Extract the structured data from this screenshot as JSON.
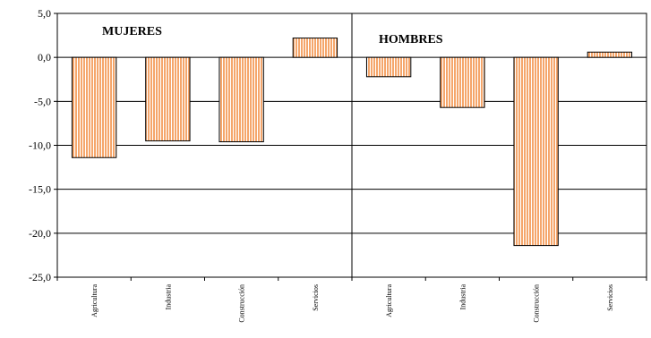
{
  "chart_data": {
    "type": "bar",
    "title": "",
    "xlabel": "",
    "ylabel": "",
    "ylim": [
      -25,
      5
    ],
    "yticks": [
      "5,0",
      "0,0",
      "-5,0",
      "-10,0",
      "-15,0",
      "-20,0",
      "-25,0"
    ],
    "ytick_values": [
      5,
      0,
      -5,
      -10,
      -15,
      -20,
      -25
    ],
    "grid": true,
    "legend": "none",
    "bar_color": "#F5A66B",
    "bar_stripe_color": "#FFFFFF",
    "bar_border_color": "#000000",
    "panels": [
      {
        "name": "MUJERES",
        "categories": [
          "Agricultura",
          "Industria",
          "Construcción",
          "Servicios"
        ],
        "values": [
          -11.4,
          -9.5,
          -9.6,
          2.2
        ]
      },
      {
        "name": "HOMBRES",
        "categories": [
          "Agricultura",
          "Industria",
          "Construcción",
          "Servicios"
        ],
        "values": [
          -2.2,
          -5.7,
          -21.4,
          0.6
        ]
      }
    ]
  }
}
